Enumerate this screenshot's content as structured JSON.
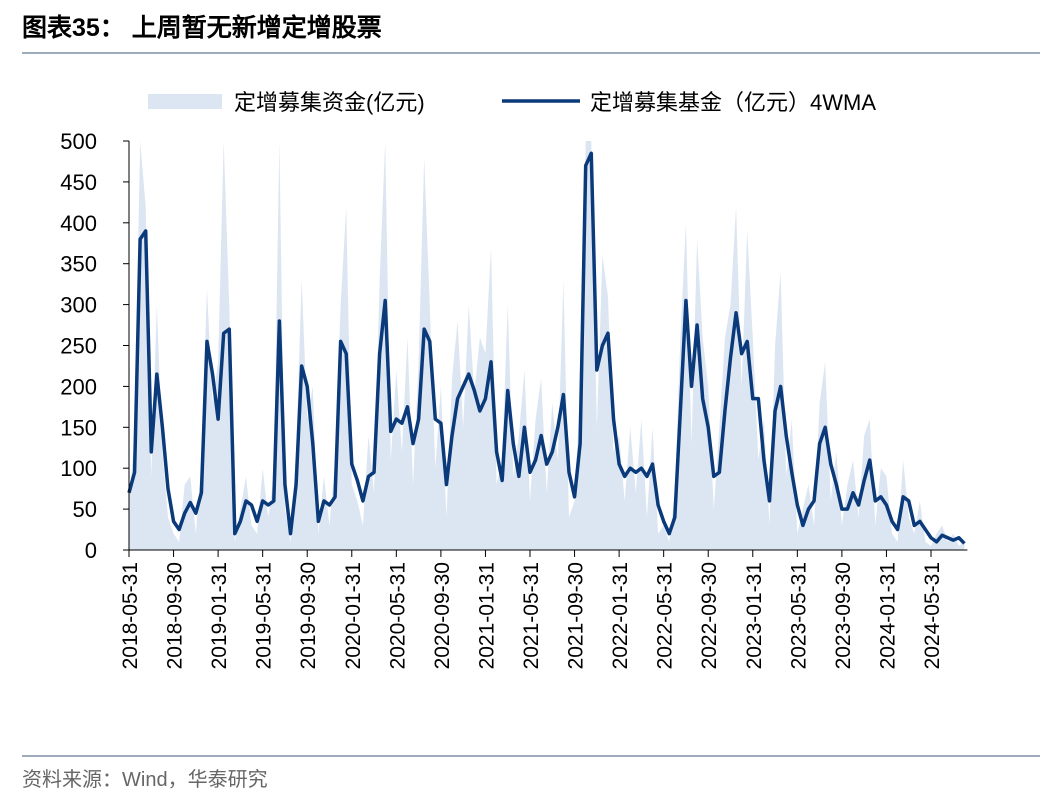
{
  "header": {
    "title": "图表35：  上周暂无新增定增股票"
  },
  "chart_data": {
    "type": "area-line",
    "categories": [
      "2018-05-31",
      null,
      null,
      null,
      null,
      null,
      null,
      null,
      "2018-09-30",
      null,
      null,
      null,
      null,
      null,
      null,
      null,
      "2019-01-31",
      null,
      null,
      null,
      null,
      null,
      null,
      null,
      "2019-05-31",
      null,
      null,
      null,
      null,
      null,
      null,
      null,
      "2019-09-30",
      null,
      null,
      null,
      null,
      null,
      null,
      null,
      "2020-01-31",
      null,
      null,
      null,
      null,
      null,
      null,
      null,
      "2020-05-31",
      null,
      null,
      null,
      null,
      null,
      null,
      null,
      "2020-09-30",
      null,
      null,
      null,
      null,
      null,
      null,
      null,
      "2021-01-31",
      null,
      null,
      null,
      null,
      null,
      null,
      null,
      "2021-05-31",
      null,
      null,
      null,
      null,
      null,
      null,
      null,
      "2021-09-30",
      null,
      null,
      null,
      null,
      null,
      null,
      null,
      "2022-01-31",
      null,
      null,
      null,
      null,
      null,
      null,
      null,
      "2022-05-31",
      null,
      null,
      null,
      null,
      null,
      null,
      null,
      "2022-09-30",
      null,
      null,
      null,
      null,
      null,
      null,
      null,
      "2023-01-31",
      null,
      null,
      null,
      null,
      null,
      null,
      null,
      "2023-05-31",
      null,
      null,
      null,
      null,
      null,
      null,
      null,
      "2023-09-30",
      null,
      null,
      null,
      null,
      null,
      null,
      null,
      "2024-01-31",
      null,
      null,
      null,
      null,
      null,
      null,
      null,
      "2024-05-31",
      null,
      null,
      null,
      null,
      null,
      null
    ],
    "series": [
      {
        "name": "定增募集资金(亿元)",
        "color": "#dce6f2",
        "kind": "area",
        "values": [
          60,
          140,
          500,
          420,
          90,
          300,
          120,
          40,
          20,
          10,
          80,
          90,
          20,
          110,
          320,
          180,
          230,
          500,
          300,
          10,
          50,
          90,
          30,
          20,
          100,
          40,
          90,
          500,
          50,
          10,
          120,
          330,
          160,
          200,
          20,
          90,
          30,
          110,
          300,
          420,
          80,
          60,
          30,
          140,
          70,
          330,
          500,
          110,
          220,
          120,
          260,
          80,
          230,
          480,
          300,
          100,
          200,
          40,
          210,
          280,
          150,
          300,
          190,
          260,
          240,
          370,
          80,
          110,
          300,
          90,
          140,
          220,
          60,
          160,
          210,
          70,
          180,
          110,
          330,
          40,
          60,
          200,
          500,
          500,
          150,
          360,
          310,
          120,
          140,
          60,
          150,
          70,
          160,
          40,
          150,
          20,
          30,
          10,
          70,
          260,
          400,
          130,
          380,
          260,
          200,
          50,
          150,
          260,
          300,
          420,
          200,
          390,
          260,
          110,
          160,
          30,
          250,
          340,
          90,
          160,
          20,
          50,
          80,
          30,
          180,
          230,
          60,
          120,
          30,
          80,
          110,
          40,
          140,
          160,
          30,
          100,
          90,
          20,
          10,
          110,
          40,
          20,
          60,
          10,
          5,
          20,
          30,
          10,
          20,
          5,
          10
        ]
      },
      {
        "name": "定增募集基金（亿元）4WMA",
        "color": "#0b3a7a",
        "kind": "line",
        "values": [
          70,
          95,
          380,
          390,
          120,
          215,
          150,
          75,
          35,
          25,
          45,
          58,
          45,
          70,
          255,
          215,
          160,
          265,
          270,
          20,
          35,
          60,
          55,
          35,
          60,
          55,
          60,
          280,
          80,
          20,
          80,
          225,
          200,
          130,
          35,
          60,
          55,
          65,
          255,
          240,
          105,
          85,
          60,
          90,
          95,
          240,
          305,
          145,
          160,
          155,
          175,
          130,
          160,
          270,
          255,
          160,
          155,
          80,
          140,
          185,
          200,
          215,
          195,
          170,
          185,
          230,
          120,
          85,
          195,
          130,
          90,
          150,
          95,
          110,
          140,
          105,
          120,
          150,
          190,
          95,
          65,
          130,
          470,
          485,
          220,
          250,
          265,
          160,
          105,
          90,
          100,
          95,
          100,
          90,
          105,
          55,
          35,
          20,
          40,
          170,
          305,
          200,
          275,
          185,
          150,
          90,
          95,
          170,
          235,
          290,
          240,
          255,
          185,
          185,
          110,
          60,
          170,
          200,
          140,
          95,
          55,
          30,
          50,
          60,
          130,
          150,
          105,
          80,
          50,
          50,
          70,
          55,
          85,
          110,
          60,
          65,
          55,
          35,
          25,
          65,
          60,
          30,
          35,
          25,
          15,
          10,
          18,
          15,
          12,
          15,
          8
        ]
      }
    ],
    "ylim": [
      0,
      500
    ],
    "yticks": [
      0,
      50,
      100,
      150,
      200,
      250,
      300,
      350,
      400,
      450,
      500
    ]
  },
  "footer": {
    "source": "资料来源：Wind，华泰研究"
  }
}
